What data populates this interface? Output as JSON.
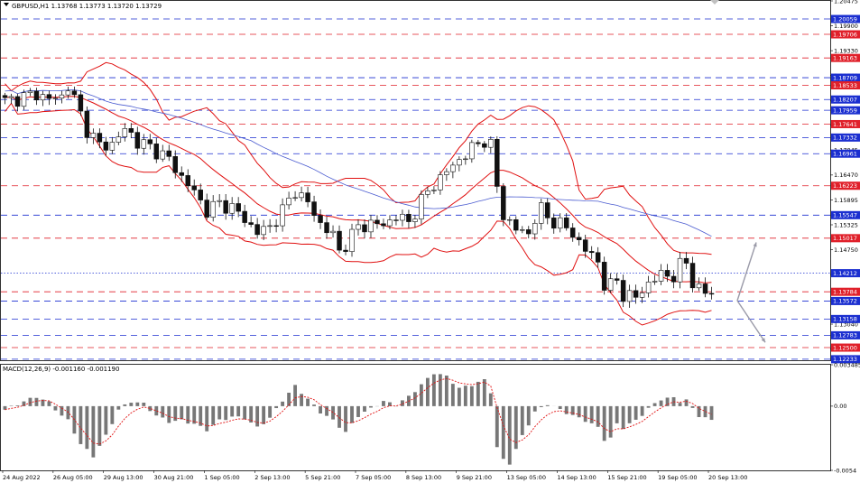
{
  "header": {
    "symbol_line": "GBPUSD,H1  1.13768 1.13773 1.13720 1.13729"
  },
  "colors": {
    "bullish": "#111111",
    "bearish": "#111111",
    "bollinger": "#e01010",
    "ma_slow": "#4a5bd0",
    "level_red": "#e0202a",
    "level_blue": "#1b2fd0",
    "hist": "#777777",
    "signal": "#e01010",
    "arrow": "#9a9aa8"
  },
  "chart_data": [
    {
      "type": "candlestick",
      "title": "GBPUSD,H1",
      "ohlc_header": {
        "open": 1.13768,
        "high": 1.13773,
        "low": 1.1372,
        "close": 1.13729
      },
      "ylim": [
        1.1221,
        1.20475
      ],
      "y_ticks": [
        "1.20475",
        "1.19900",
        "1.19330",
        "1.18760",
        "1.18185",
        "1.17615",
        "1.17045",
        "1.16470",
        "1.15895",
        "1.15325",
        "1.14750",
        "1.14180",
        "1.13610",
        "1.13040",
        "1.12470"
      ],
      "x_ticks": [
        "24 Aug 2022",
        "26 Aug 05:00",
        "29 Aug 13:00",
        "30 Aug 21:00",
        "1 Sep 05:00",
        "2 Sep 13:00",
        "5 Sep 21:00",
        "7 Sep 05:00",
        "8 Sep 13:00",
        "9 Sep 21:00",
        "13 Sep 05:00",
        "14 Sep 13:00",
        "15 Sep 21:00",
        "19 Sep 05:00",
        "20 Sep 13:00"
      ],
      "price_path": [
        [
          0,
          1.1817
        ],
        [
          3,
          1.1827
        ],
        [
          5,
          1.1834
        ],
        [
          7,
          1.1821
        ],
        [
          9,
          1.1828
        ],
        [
          10,
          1.1852
        ],
        [
          11,
          1.1822
        ],
        [
          13,
          1.1752
        ],
        [
          15,
          1.1715
        ],
        [
          17,
          1.1718
        ],
        [
          19,
          1.1752
        ],
        [
          20,
          1.1742
        ],
        [
          21,
          1.1722
        ],
        [
          23,
          1.1712
        ],
        [
          25,
          1.1693
        ],
        [
          26,
          1.1683
        ],
        [
          28,
          1.1642
        ],
        [
          30,
          1.1608
        ],
        [
          32,
          1.1565
        ],
        [
          34,
          1.1582
        ],
        [
          36,
          1.1572
        ],
        [
          38,
          1.1545
        ],
        [
          40,
          1.1515
        ],
        [
          42,
          1.1528
        ],
        [
          44,
          1.1565
        ],
        [
          46,
          1.1612
        ],
        [
          48,
          1.1582
        ],
        [
          50,
          1.1535
        ],
        [
          52,
          1.1508
        ],
        [
          53,
          1.1472
        ],
        [
          54,
          1.1488
        ],
        [
          56,
          1.1528
        ],
        [
          58,
          1.1535
        ],
        [
          60,
          1.1532
        ],
        [
          62,
          1.1552
        ],
        [
          64,
          1.1538
        ],
        [
          66,
          1.1588
        ],
        [
          68,
          1.1626
        ],
        [
          70,
          1.1655
        ],
        [
          72,
          1.1682
        ],
        [
          74,
          1.1708
        ],
        [
          76,
          1.1728
        ],
        [
          77,
          1.1715
        ],
        [
          78,
          1.1618
        ],
        [
          79,
          1.1555
        ],
        [
          81,
          1.1522
        ],
        [
          83,
          1.1512
        ],
        [
          84,
          1.1548
        ],
        [
          85,
          1.1568
        ],
        [
          86,
          1.1548
        ],
        [
          88,
          1.1535
        ],
        [
          90,
          1.1512
        ],
        [
          92,
          1.1475
        ],
        [
          94,
          1.1448
        ],
        [
          95,
          1.1395
        ],
        [
          96,
          1.1392
        ],
        [
          97,
          1.1405
        ],
        [
          98,
          1.1372
        ],
        [
          100,
          1.1365
        ],
        [
          102,
          1.1398
        ],
        [
          104,
          1.1418
        ],
        [
          106,
          1.1415
        ],
        [
          107,
          1.1438
        ],
        [
          108,
          1.1445
        ],
        [
          109,
          1.1402
        ],
        [
          110,
          1.1385
        ],
        [
          111,
          1.1375
        ],
        [
          112,
          1.1373
        ]
      ],
      "indicators": [
        "Bollinger Bands",
        "Moving Average"
      ],
      "levels": [
        {
          "label": "1.20059",
          "value": 1.20059,
          "color": "blue"
        },
        {
          "label": "1.19706",
          "value": 1.19706,
          "color": "red"
        },
        {
          "label": "1.19163",
          "value": 1.19163,
          "color": "red"
        },
        {
          "label": "1.18709",
          "value": 1.18709,
          "color": "blue"
        },
        {
          "label": "1.18533",
          "value": 1.18533,
          "color": "red"
        },
        {
          "label": "1.18207",
          "value": 1.18207,
          "color": "blue"
        },
        {
          "label": "1.17959",
          "value": 1.17959,
          "color": "blue"
        },
        {
          "label": "1.17641",
          "value": 1.17641,
          "color": "red"
        },
        {
          "label": "1.17332",
          "value": 1.17332,
          "color": "blue"
        },
        {
          "label": "1.16961",
          "value": 1.16961,
          "color": "blue"
        },
        {
          "label": "1.16223",
          "value": 1.16223,
          "color": "red"
        },
        {
          "label": "1.15547",
          "value": 1.15547,
          "color": "blue"
        },
        {
          "label": "1.15017",
          "value": 1.15017,
          "color": "red"
        },
        {
          "label": "1.14212",
          "value": 1.14212,
          "color": "blue",
          "style": "dotted"
        },
        {
          "label": "1.13784",
          "value": 1.13784,
          "color": "red"
        },
        {
          "label": "1.13572",
          "value": 1.13572,
          "color": "blue"
        },
        {
          "label": "1.13158",
          "value": 1.13158,
          "color": "blue"
        },
        {
          "label": "1.12783",
          "value": 1.12783,
          "color": "blue"
        },
        {
          "label": "1.12500",
          "value": 1.125,
          "color": "red"
        },
        {
          "label": "1.12233",
          "value": 1.12233,
          "color": "blue"
        }
      ],
      "scenario_arrows": [
        {
          "direction": "up",
          "from": 1.1358,
          "to": 1.1492
        },
        {
          "direction": "down",
          "from": 1.1358,
          "to": 1.1262
        }
      ]
    },
    {
      "type": "histogram",
      "title": "MACD(12,26,9) -0.001160 -0.001190",
      "macd": -0.00116,
      "signal": -0.00119,
      "ylim": [
        -0.0054,
        0.003485
      ],
      "y_ticks": [
        "0.003485",
        "0.00",
        "-0.0054"
      ],
      "hist_path": [
        [
          0,
          -0.0003
        ],
        [
          3,
          0.0004
        ],
        [
          5,
          0.0008
        ],
        [
          7,
          0.0003
        ],
        [
          9,
          -0.0008
        ],
        [
          10,
          -0.0012
        ],
        [
          12,
          -0.0032
        ],
        [
          14,
          -0.0042
        ],
        [
          16,
          -0.0025
        ],
        [
          18,
          -0.0003
        ],
        [
          20,
          0.0004
        ],
        [
          22,
          0.0002
        ],
        [
          24,
          -0.0008
        ],
        [
          26,
          -0.0013
        ],
        [
          28,
          -0.0012
        ],
        [
          30,
          -0.0015
        ],
        [
          32,
          -0.002
        ],
        [
          34,
          -0.0012
        ],
        [
          36,
          -0.0009
        ],
        [
          38,
          -0.001
        ],
        [
          40,
          -0.0018
        ],
        [
          42,
          -0.001
        ],
        [
          44,
          0.0005
        ],
        [
          46,
          0.0017
        ],
        [
          48,
          0.0006
        ],
        [
          50,
          -0.0005
        ],
        [
          52,
          -0.0012
        ],
        [
          54,
          -0.0022
        ],
        [
          56,
          -0.0008
        ],
        [
          58,
          -0.0002
        ],
        [
          60,
          0.0004
        ],
        [
          62,
          0.0001
        ],
        [
          64,
          0.0008
        ],
        [
          66,
          0.0018
        ],
        [
          68,
          0.0028
        ],
        [
          70,
          0.0025
        ],
        [
          72,
          0.0015
        ],
        [
          74,
          0.0018
        ],
        [
          76,
          0.0022
        ],
        [
          77,
          0.0012
        ],
        [
          78,
          -0.0035
        ],
        [
          79,
          -0.0045
        ],
        [
          80,
          -0.0048
        ],
        [
          82,
          -0.0025
        ],
        [
          84,
          -0.0005
        ],
        [
          86,
          0.0002
        ],
        [
          88,
          -0.0003
        ],
        [
          90,
          -0.0008
        ],
        [
          92,
          -0.0012
        ],
        [
          94,
          -0.0018
        ],
        [
          95,
          -0.0028
        ],
        [
          96,
          -0.0027
        ],
        [
          97,
          -0.0015
        ],
        [
          98,
          -0.0018
        ],
        [
          100,
          -0.0012
        ],
        [
          102,
          -0.0002
        ],
        [
          104,
          0.0006
        ],
        [
          106,
          0.0007
        ],
        [
          107,
          0.0004
        ],
        [
          108,
          0.0005
        ],
        [
          109,
          -0.0002
        ],
        [
          110,
          -0.0008
        ],
        [
          112,
          -0.0012
        ]
      ]
    }
  ]
}
